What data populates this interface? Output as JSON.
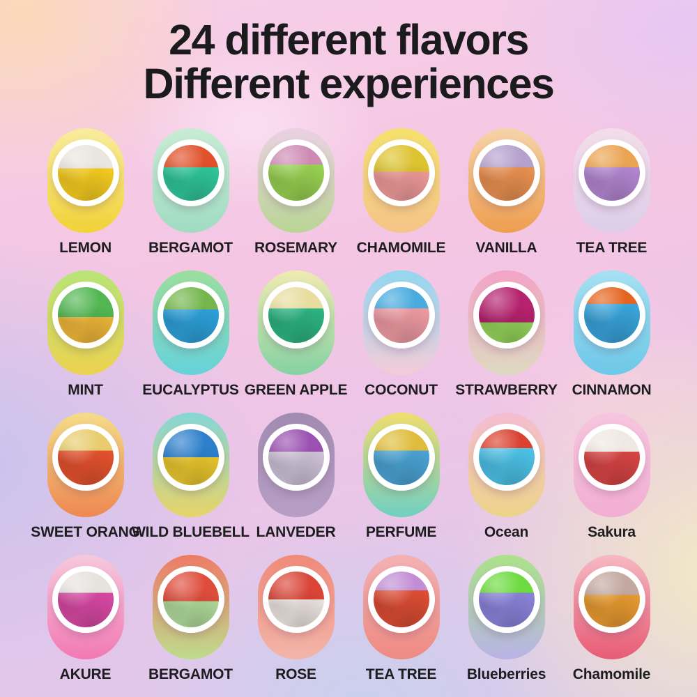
{
  "title": {
    "line1": "24 different flavors",
    "line2": "Different experiences"
  },
  "grid": {
    "items": [
      {
        "label": "LEMON",
        "capsule_top": "#f8ec9e",
        "capsule_bottom": "#f2d238",
        "ball_top": "#e9e5df",
        "ball_bottom": "#f6cd20",
        "split": "42%"
      },
      {
        "label": "BERGAMOT",
        "capsule_top": "#c8ebd4",
        "capsule_bottom": "#a0dcc2",
        "ball_top": "#e0502a",
        "ball_bottom": "#30c69b",
        "split": "40%"
      },
      {
        "label": "ROSEMARY",
        "capsule_top": "#ebd1e2",
        "capsule_bottom": "#b9d595",
        "ball_top": "#cf8ab4",
        "ball_bottom": "#98d052",
        "split": "35%"
      },
      {
        "label": "CHAMOMILE",
        "capsule_top": "#f4e06e",
        "capsule_bottom": "#f5c489",
        "ball_top": "#ddc32f",
        "ball_bottom": "#f09b9b",
        "split": "48%"
      },
      {
        "label": "VANILLA",
        "capsule_top": "#f6d3a9",
        "capsule_bottom": "#ee9e50",
        "ball_top": "#b5a1cd",
        "ball_bottom": "#ea9152",
        "split": "40%"
      },
      {
        "label": "TEA TREE",
        "capsule_top": "#f3dde9",
        "capsule_bottom": "#dccee9",
        "ball_top": "#eaa452",
        "ball_bottom": "#b487d2",
        "split": "40%"
      },
      {
        "label": "MINT",
        "capsule_top": "#b8e478",
        "capsule_bottom": "#ecd250",
        "ball_top": "#52b752",
        "ball_bottom": "#f0b83a",
        "split": "54%"
      },
      {
        "label": "EUCALYPTUS",
        "capsule_top": "#9cde9e",
        "capsule_bottom": "#66d2da",
        "ball_top": "#74b64d",
        "ball_bottom": "#2ea1da",
        "split": "40%"
      },
      {
        "label": "GREEN APPLE",
        "capsule_top": "#f0eab2",
        "capsule_bottom": "#85d2a2",
        "ball_top": "#e8dc9e",
        "ball_bottom": "#2db483",
        "split": "38%"
      },
      {
        "label": "COCONUT",
        "capsule_top": "#93d7f0",
        "capsule_bottom": "#f4ccd8",
        "ball_top": "#49abde",
        "ball_bottom": "#ee9ba3",
        "split": "38%"
      },
      {
        "label": "STRAWBERRY",
        "capsule_top": "#f2a4c5",
        "capsule_bottom": "#ded9c1",
        "ball_top": "#b5226e",
        "ball_bottom": "#96d45c",
        "split": "63%"
      },
      {
        "label": "CINNAMON",
        "capsule_top": "#a6e0f2",
        "capsule_bottom": "#6dc8e8",
        "ball_top": "#e4651f",
        "ball_bottom": "#39a3da",
        "split": "30%"
      },
      {
        "label": "SWEET ORANG",
        "capsule_top": "#f4dc89",
        "capsule_bottom": "#ee8852",
        "ball_top": "#e8cc6d",
        "ball_bottom": "#e4522e",
        "split": "38%"
      },
      {
        "label": "WILD BLUEBELL",
        "capsule_top": "#85d6d6",
        "capsule_bottom": "#e8d468",
        "ball_top": "#2d7fcc",
        "ball_bottom": "#eac72f",
        "split": "50%"
      },
      {
        "label": "LANVEDER",
        "capsule_top": "#a28bb0",
        "capsule_bottom": "#b69ec4",
        "ball_top": "#9a51b2",
        "ball_bottom": "#cfc2d8",
        "split": "40%"
      },
      {
        "label": "PERFUME",
        "capsule_top": "#eede6d",
        "capsule_bottom": "#71cfc2",
        "ball_top": "#dfbc3b",
        "ball_bottom": "#4ba3d4",
        "split": "38%"
      },
      {
        "label": "Ocean",
        "capsule_top": "#f4bdd2",
        "capsule_bottom": "#ecd489",
        "ball_top": "#da4130",
        "ball_bottom": "#4dc1e6",
        "split": "34%"
      },
      {
        "label": "Sakura",
        "capsule_top": "#f6c5de",
        "capsule_bottom": "#f2aed2",
        "ball_top": "#f0e8e2",
        "ball_bottom": "#d84545",
        "split": "40%"
      },
      {
        "label": "AKURE",
        "capsule_top": "#f6c9dc",
        "capsule_bottom": "#f279b4",
        "ball_top": "#e6e2de",
        "ball_bottom": "#d849a4",
        "split": "38%"
      },
      {
        "label": "BERGAMOT",
        "capsule_top": "#ee7b67",
        "capsule_bottom": "#bedc8d",
        "ball_top": "#de4d3c",
        "ball_bottom": "#b2dc9c",
        "split": "53%"
      },
      {
        "label": "ROSE",
        "capsule_top": "#f08a7a",
        "capsule_bottom": "#f2b5a9",
        "ball_top": "#da4538",
        "ball_bottom": "#efe6e2",
        "split": "50%"
      },
      {
        "label": "TEA TREE",
        "capsule_top": "#f4b1b3",
        "capsule_bottom": "#ee8a82",
        "ball_top": "#c18dd4",
        "ball_bottom": "#dc4d34",
        "split": "34%"
      },
      {
        "label": "Blueberries",
        "capsule_top": "#abe289",
        "capsule_bottom": "#b9b3e6",
        "ball_top": "#6dda3f",
        "ball_bottom": "#8b83da",
        "split": "38%"
      },
      {
        "label": "Chamomile",
        "capsule_top": "#f6b9c3",
        "capsule_bottom": "#e85b75",
        "ball_top": "#c2a8a0",
        "ball_bottom": "#e89b31",
        "split": "42%"
      }
    ]
  }
}
